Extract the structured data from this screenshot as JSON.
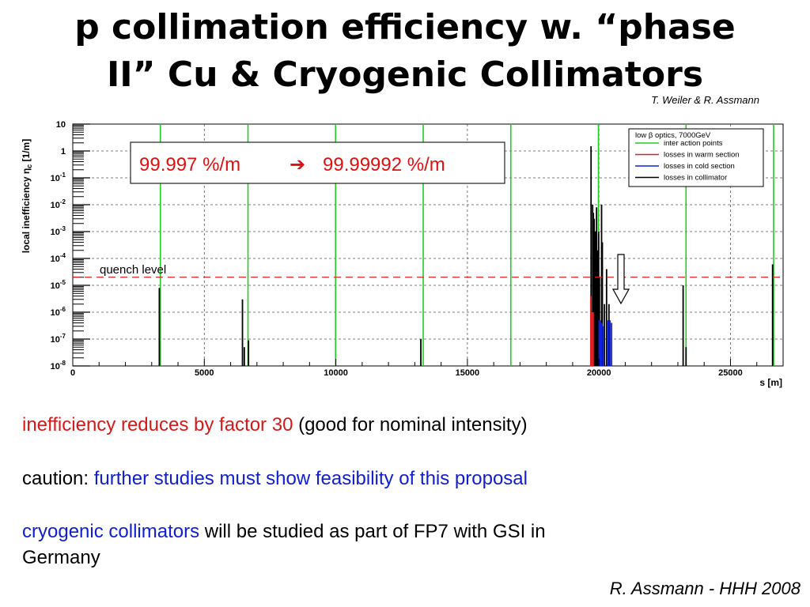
{
  "slide": {
    "title_line1": "p collimation efficiency w. “phase",
    "title_line2": "II” Cu & Cryogenic Collimators",
    "credit": "T. Weiler & R. Assmann",
    "bullets": [
      {
        "red": "inefficiency reduces by factor 30",
        "rest": " (good for nominal intensity)"
      },
      {
        "lead": "caution: ",
        "blue": "further studies must show feasibility of this proposal"
      },
      {
        "blue": "cryogenic collimators",
        "rest": " will be studied as part of FP7 with GSI in",
        "rest2": "Germany"
      }
    ],
    "footer": "R. Assmann - HHH 2008"
  },
  "chart_data": {
    "type": "bar",
    "xlabel": "s [m]",
    "ylabel": "local inefficiency ηc [1/m]",
    "xlim": [
      0,
      27000
    ],
    "ylim_log10": [
      -8,
      1
    ],
    "yscale": "log",
    "x_ticks": [
      0,
      5000,
      10000,
      15000,
      20000,
      25000
    ],
    "y_tick_labels": [
      {
        "base": "10",
        "exp": "",
        "v": 1
      },
      {
        "base": "1",
        "exp": "",
        "v": 0
      },
      {
        "base": "10",
        "exp": "-1",
        "v": -1
      },
      {
        "base": "10",
        "exp": "-2",
        "v": -2
      },
      {
        "base": "10",
        "exp": "-3",
        "v": -3
      },
      {
        "base": "10",
        "exp": "-4",
        "v": -4
      },
      {
        "base": "10",
        "exp": "-5",
        "v": -5
      },
      {
        "base": "10",
        "exp": "-6",
        "v": -6
      },
      {
        "base": "10",
        "exp": "-7",
        "v": -7
      },
      {
        "base": "10",
        "exp": "-8",
        "v": -8
      }
    ],
    "grid": true,
    "legend_position": "top-right",
    "legend_title": "low β optics, 7000GeV",
    "legend": [
      {
        "name": "inter action points",
        "color": "#22cc22"
      },
      {
        "name": "losses in warm section",
        "color": "#e02020"
      },
      {
        "name": "losses in cold section",
        "color": "#1020e0"
      },
      {
        "name": "losses in collimator",
        "color": "#000000"
      }
    ],
    "interaction_points": [
      3330,
      6660,
      9990,
      13320,
      16650,
      19980,
      23310,
      26640
    ],
    "quench_level": {
      "label": "quench level",
      "value": 2e-05
    },
    "annotation_box": {
      "before": "99.997 %/m",
      "arrow": "➔",
      "after": "99.99992 %/m"
    },
    "series": [
      {
        "name": "losses in collimator",
        "color": "#000000",
        "points": [
          [
            3290,
            8e-06
          ],
          [
            6450,
            3e-06
          ],
          [
            6520,
            5e-08
          ],
          [
            6680,
            9e-08
          ],
          [
            13230,
            1e-07
          ],
          [
            19700,
            1.5
          ],
          [
            19760,
            0.01
          ],
          [
            19790,
            0.005
          ],
          [
            19820,
            0.003
          ],
          [
            19870,
            0.001
          ],
          [
            19910,
            0.008
          ],
          [
            19950,
            0.0002
          ],
          [
            19990,
            0.001
          ],
          [
            20020,
            2e-05
          ],
          [
            20100,
            0.01
          ],
          [
            20130,
            0.0004
          ],
          [
            20210,
            2e-06
          ],
          [
            20290,
            4e-05
          ],
          [
            20380,
            2e-06
          ],
          [
            23200,
            1e-05
          ],
          [
            23310,
            5e-08
          ],
          [
            26600,
            6e-05
          ]
        ]
      },
      {
        "name": "losses in warm section",
        "color": "#e02020",
        "points": [
          [
            19690,
            4e-06
          ],
          [
            19730,
            1e-06
          ],
          [
            19780,
            1e-06
          ]
        ]
      },
      {
        "name": "losses in cold section",
        "color": "#1020e0",
        "points": [
          [
            20010,
            5e-07
          ],
          [
            20050,
            5e-07
          ],
          [
            20110,
            4e-07
          ],
          [
            20180,
            3e-07
          ],
          [
            20350,
            5e-07
          ],
          [
            20420,
            5e-07
          ],
          [
            20480,
            4e-07
          ]
        ]
      }
    ]
  }
}
